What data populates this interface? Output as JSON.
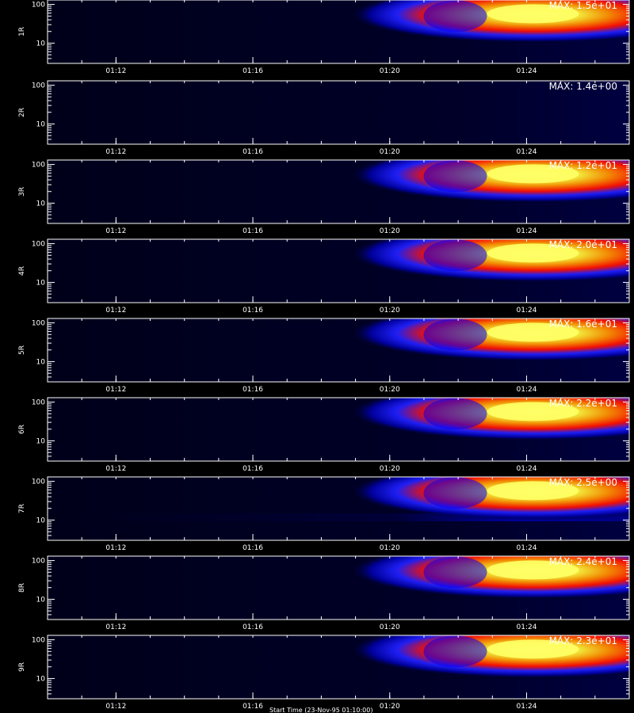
{
  "chart_data": [
    {
      "type": "heatmap",
      "channel": "1R",
      "max_label": "MAX: 1.5e+01"
    },
    {
      "type": "heatmap",
      "channel": "2R",
      "max_label": "MAX: 1.4e+00"
    },
    {
      "type": "heatmap",
      "channel": "3R",
      "max_label": "MAX: 1.2e+01"
    },
    {
      "type": "heatmap",
      "channel": "4R",
      "max_label": "MAX: 2.0e+01"
    },
    {
      "type": "heatmap",
      "channel": "5R",
      "max_label": "MAX: 1.6e+01"
    },
    {
      "type": "heatmap",
      "channel": "6R",
      "max_label": "MAX: 2.2e+01"
    },
    {
      "type": "heatmap",
      "channel": "7R",
      "max_label": "MAX: 2.5e+00"
    },
    {
      "type": "heatmap",
      "channel": "8R",
      "max_label": "MAX: 2.4e+01"
    },
    {
      "type": "heatmap",
      "channel": "9R",
      "max_label": "MAX: 2.3e+01"
    }
  ],
  "shared_axes": {
    "x_tick_labels": [
      "01:12",
      "01:16",
      "01:20",
      "01:24"
    ],
    "x_range_minutes": [
      "01:10",
      "01:27"
    ],
    "y_scale": "log",
    "y_tick_labels": [
      "10",
      "100"
    ],
    "y_range": [
      3,
      130
    ],
    "colormap": [
      "#000000",
      "#00008b",
      "#0000ff",
      "#ff0000",
      "#ff8c00",
      "#ffff66"
    ]
  },
  "footer": {
    "text": "Start Time (23-Nov-95 01:10:00)"
  }
}
